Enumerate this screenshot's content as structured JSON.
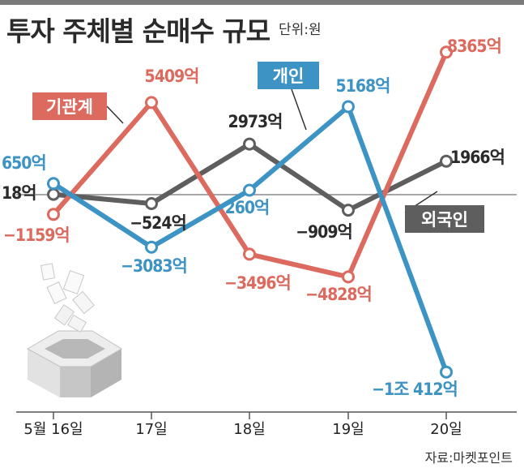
{
  "title": "투자 주체별 순매수 규모",
  "unit_label": "단위:원",
  "source": "자료:마켓포인트",
  "colors": {
    "기관계": "#dc6a5e",
    "개인": "#3d94c4",
    "외국인": "#5e5e5e",
    "axis": "#555555",
    "zero_line": "#8a8a8a"
  },
  "chart_data": {
    "type": "line",
    "categories": [
      "5월 16일",
      "17일",
      "18일",
      "19일",
      "20일"
    ],
    "unit": "억",
    "series": [
      {
        "name": "기관계",
        "values": [
          -1159,
          5409,
          -3496,
          -4828,
          8365
        ],
        "labels": [
          "−1159억",
          "5409억",
          "−3496억",
          "−4828억",
          "8365억"
        ]
      },
      {
        "name": "외국인",
        "values": [
          18,
          -524,
          2973,
          -909,
          1966
        ],
        "labels": [
          "18억",
          "−524억",
          "2973억",
          "−909억",
          "1966억"
        ]
      },
      {
        "name": "개인",
        "values": [
          650,
          -3083,
          260,
          5168,
          -10412
        ],
        "labels": [
          "650억",
          "−3083억",
          "260억",
          "5168억",
          "−1조 412억"
        ]
      }
    ],
    "legend": "inline labels",
    "grid": false
  }
}
